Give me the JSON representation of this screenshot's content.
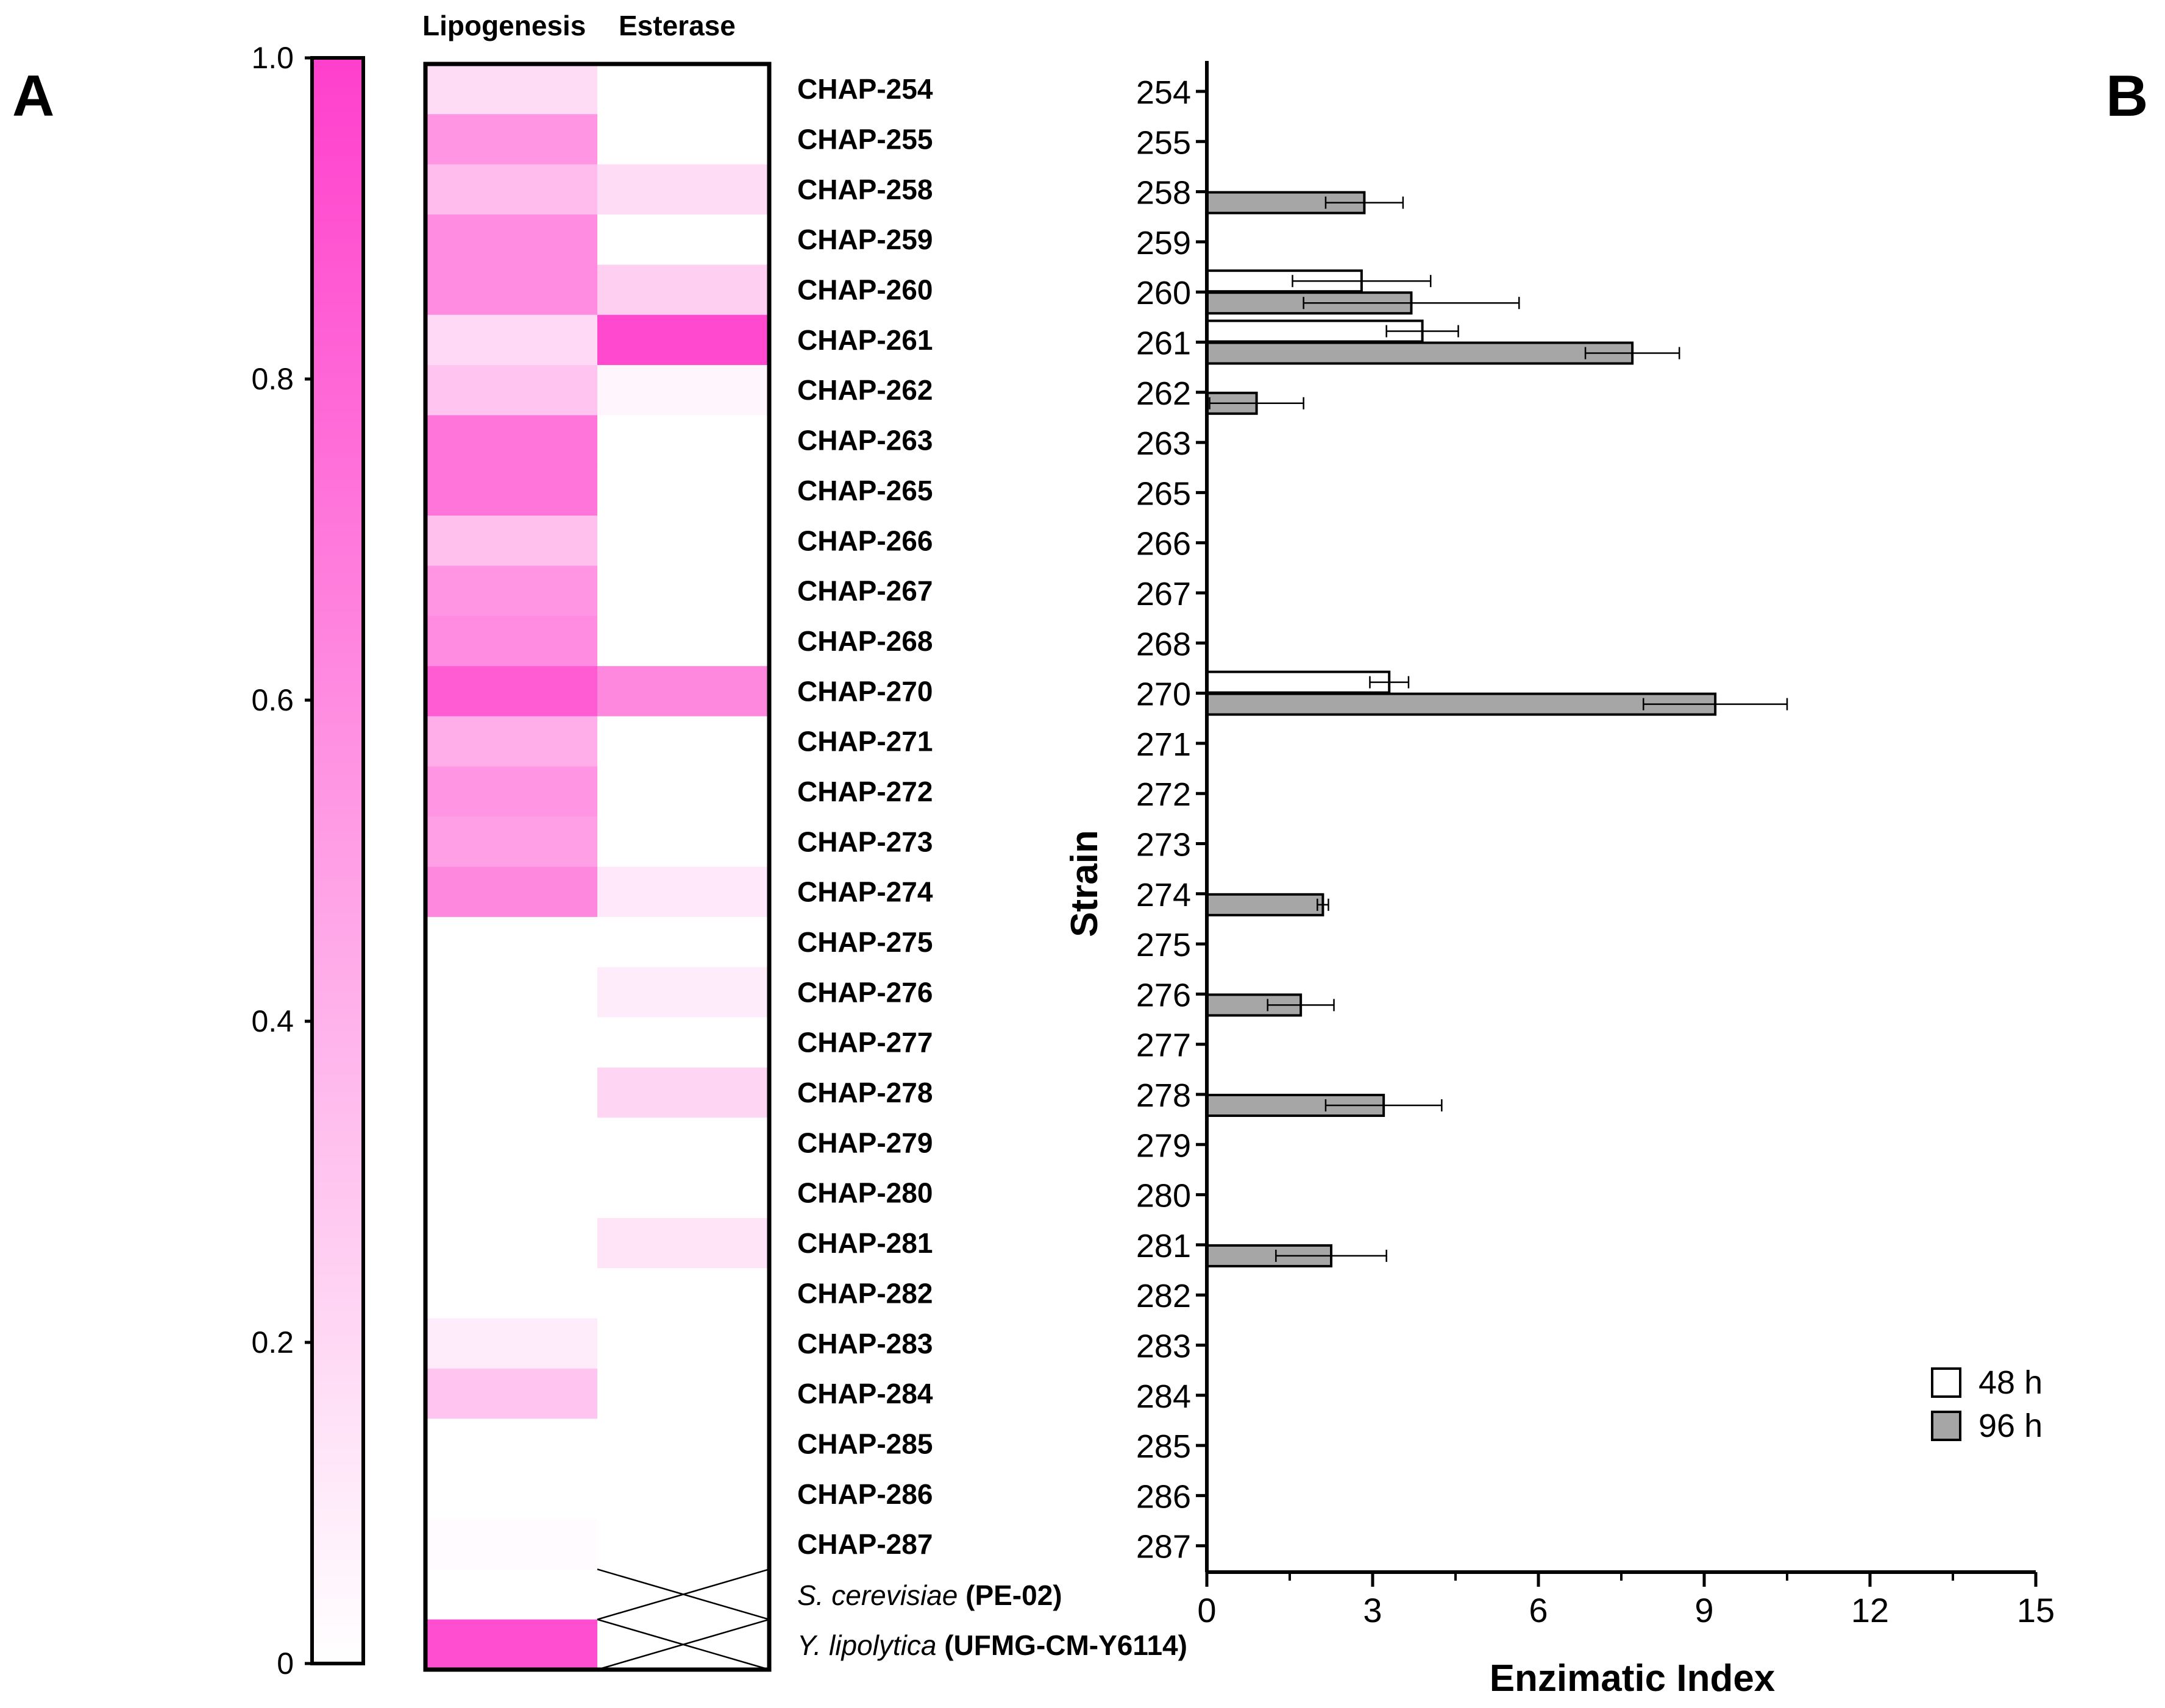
{
  "panel_a_label": "A",
  "panel_b_label": "B",
  "chart_data": [
    {
      "type": "heatmap",
      "columns": [
        "Lipogenesis",
        "Esterase"
      ],
      "rows": [
        "CHAP-254",
        "CHAP-255",
        "CHAP-258",
        "CHAP-259",
        "CHAP-260",
        "CHAP-261",
        "CHAP-262",
        "CHAP-263",
        "CHAP-265",
        "CHAP-266",
        "CHAP-267",
        "CHAP-268",
        "CHAP-270",
        "CHAP-271",
        "CHAP-272",
        "CHAP-273",
        "CHAP-274",
        "CHAP-275",
        "CHAP-276",
        "CHAP-277",
        "CHAP-278",
        "CHAP-279",
        "CHAP-280",
        "CHAP-281",
        "CHAP-282",
        "CHAP-283",
        "CHAP-284",
        "CHAP-285",
        "CHAP-286",
        "CHAP-287"
      ],
      "controls": [
        {
          "species": "S. cerevisiae",
          "code": "(PE-02)"
        },
        {
          "species": "Y. lipolytica",
          "code": "(UFMG-CM-Y6114)"
        }
      ],
      "values": [
        [
          0.18,
          0.0
        ],
        [
          0.55,
          0.0
        ],
        [
          0.35,
          0.18
        ],
        [
          0.6,
          0.0
        ],
        [
          0.6,
          0.25
        ],
        [
          0.2,
          0.95
        ],
        [
          0.3,
          0.05
        ],
        [
          0.72,
          0.0
        ],
        [
          0.72,
          0.0
        ],
        [
          0.33,
          0.0
        ],
        [
          0.55,
          0.0
        ],
        [
          0.6,
          0.0
        ],
        [
          0.85,
          0.62
        ],
        [
          0.42,
          0.0
        ],
        [
          0.55,
          0.0
        ],
        [
          0.5,
          0.0
        ],
        [
          0.62,
          0.12
        ],
        [
          0.0,
          0.0
        ],
        [
          0.0,
          0.1
        ],
        [
          0.0,
          0.0
        ],
        [
          0.0,
          0.22
        ],
        [
          0.0,
          0.0
        ],
        [
          0.0,
          0.0
        ],
        [
          0.0,
          0.14
        ],
        [
          0.0,
          0.0
        ],
        [
          0.1,
          0.0
        ],
        [
          0.3,
          0.0
        ],
        [
          0.0,
          0.0
        ],
        [
          0.0,
          0.0
        ],
        [
          0.02,
          0.0
        ],
        [
          0.0,
          null
        ],
        [
          0.92,
          null
        ]
      ],
      "colorbar": {
        "range": [
          0,
          1.0
        ],
        "ticks": [
          "0",
          "0.2",
          "0.4",
          "0.6",
          "0.8",
          "1.0"
        ],
        "low_color": "#ffffff",
        "high_color": "#ff3fcc"
      }
    },
    {
      "type": "bar",
      "orientation": "horizontal",
      "categories": [
        "254",
        "255",
        "258",
        "259",
        "260",
        "261",
        "262",
        "263",
        "265",
        "266",
        "267",
        "268",
        "270",
        "271",
        "272",
        "273",
        "274",
        "275",
        "276",
        "277",
        "278",
        "279",
        "280",
        "281",
        "282",
        "283",
        "284",
        "285",
        "286",
        "287"
      ],
      "series": [
        {
          "name": "48 h",
          "color": "#ffffff",
          "values": [
            0,
            0,
            0,
            0,
            2.8,
            3.9,
            0,
            0,
            0,
            0,
            0,
            0,
            3.3,
            0,
            0,
            0,
            0,
            0,
            0,
            0,
            0,
            0,
            0,
            0,
            0,
            0,
            0,
            0,
            0,
            0
          ],
          "errors": [
            0,
            0,
            0,
            0,
            1.25,
            0.65,
            0,
            0,
            0,
            0,
            0,
            0,
            0.35,
            0,
            0,
            0,
            0,
            0,
            0,
            0,
            0,
            0,
            0,
            0,
            0,
            0,
            0,
            0,
            0,
            0
          ]
        },
        {
          "name": "96 h",
          "color": "#a6a6a6",
          "values": [
            0,
            0,
            2.85,
            0,
            3.7,
            7.7,
            0.9,
            0,
            0,
            0,
            0,
            0,
            9.2,
            0,
            0,
            0,
            2.1,
            0,
            1.7,
            0,
            3.2,
            0,
            0,
            2.25,
            0,
            0,
            0,
            0,
            0,
            0
          ],
          "errors": [
            0,
            0,
            0.7,
            0,
            1.95,
            0.85,
            0.85,
            0,
            0,
            0,
            0,
            0,
            1.3,
            0,
            0,
            0,
            0.1,
            0,
            0.6,
            0,
            1.05,
            0,
            0,
            1.0,
            0,
            0,
            0,
            0,
            0,
            0
          ]
        }
      ],
      "xlabel": "Enzimatic Index",
      "ylabel": "Strain",
      "xlim": [
        0,
        15
      ],
      "xticks": [
        "0",
        "3",
        "6",
        "9",
        "12",
        "15"
      ],
      "legend": "bottom-right"
    }
  ]
}
